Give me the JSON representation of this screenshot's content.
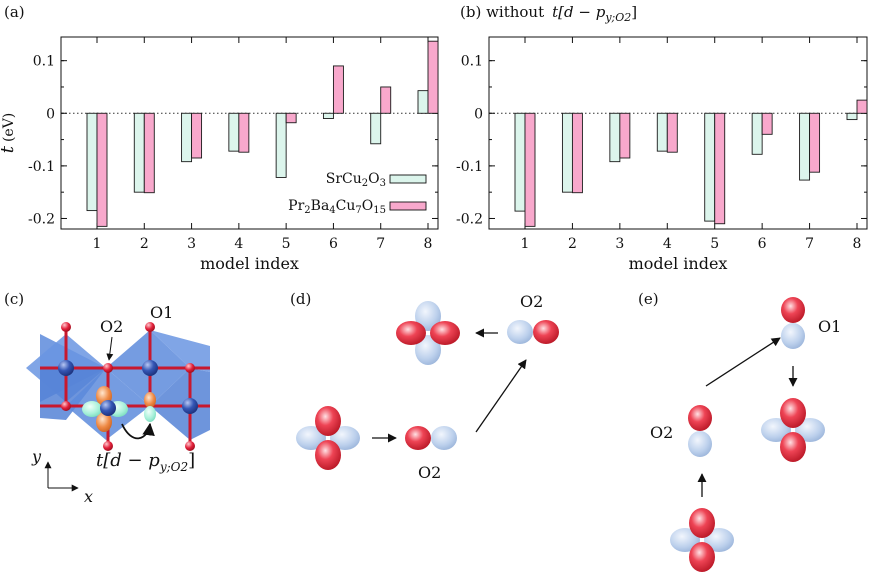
{
  "panels": {
    "a": "(a)",
    "b": "(b) without",
    "b_math": "t[d − p",
    "b_math_sub": "y;O2",
    "b_math_end": "]",
    "c": "(c)",
    "d": "(d)",
    "e": "(e)"
  },
  "structure": {
    "o1_label": "O1",
    "o2_label": "O2",
    "hop_label": "t[d − p",
    "hop_sub": "y;O2",
    "hop_end": "]",
    "axis_y": "y",
    "axis_x": "x"
  },
  "orbitals_d": {
    "o2_top": "O2",
    "o2_bottom": "O2"
  },
  "orbitals_e": {
    "o1": "O1",
    "o2": "O2"
  },
  "colors": {
    "series1_fill": "#dcf5ec",
    "series2_fill": "#f8a8cc",
    "red": "#d81e2c",
    "blue_orbital": "#b8cdea",
    "plaquette": "#5d8bdc",
    "cu": "#2e4fa8"
  },
  "chart_data": [
    {
      "type": "bar",
      "ylabel": "t",
      "ylabel_unit": "(eV)",
      "xlabel": "model index",
      "categories": [
        "1",
        "2",
        "3",
        "4",
        "5",
        "6",
        "7",
        "8"
      ],
      "ylim": [
        -0.22,
        0.145
      ],
      "yticks": [
        -0.2,
        -0.1,
        0,
        0.1
      ],
      "ytick_labels": [
        "-0.2",
        "-0.1",
        "0",
        "0.1"
      ],
      "legend_position": "bottom-right",
      "series": [
        {
          "name": "SrCu",
          "name_sub1": "2",
          "name_mid": "O",
          "name_sub2": "3",
          "values": [
            -0.185,
            -0.15,
            -0.092,
            -0.072,
            -0.122,
            -0.01,
            -0.058,
            0.043
          ]
        },
        {
          "name": "Pr",
          "name_sub1": "2",
          "name_mid": "Ba",
          "name_sub2": "4",
          "name_mid2": "Cu",
          "name_sub3": "7",
          "name_mid3": "O",
          "name_sub4": "15",
          "values": [
            -0.215,
            -0.151,
            -0.085,
            -0.074,
            -0.018,
            0.09,
            0.05,
            0.137
          ]
        }
      ]
    },
    {
      "type": "bar",
      "xlabel": "model index",
      "categories": [
        "1",
        "2",
        "3",
        "4",
        "5",
        "6",
        "7",
        "8"
      ],
      "ylim": [
        -0.22,
        0.145
      ],
      "yticks": [
        -0.2,
        -0.1,
        0,
        0.1
      ],
      "ytick_labels": [
        "-0.2",
        "-0.1",
        "0",
        "0.1"
      ],
      "series": [
        {
          "name": "SrCu2O3",
          "values": [
            -0.186,
            -0.15,
            -0.092,
            -0.072,
            -0.205,
            -0.078,
            -0.127,
            -0.012
          ]
        },
        {
          "name": "Pr2Ba4Cu7O15",
          "values": [
            -0.215,
            -0.151,
            -0.085,
            -0.074,
            -0.21,
            -0.04,
            -0.112,
            0.025
          ]
        }
      ]
    }
  ]
}
